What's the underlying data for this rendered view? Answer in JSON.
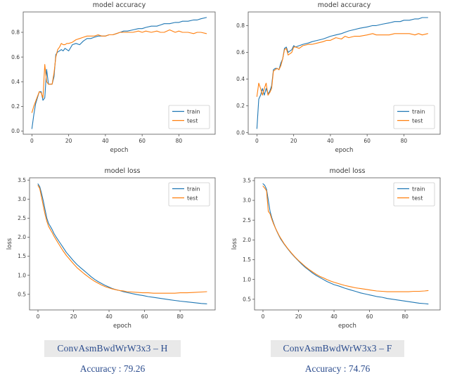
{
  "colors": {
    "train": "#1f77b4",
    "test": "#ff7f0e",
    "axis_text": "#3a3a3a",
    "spine": "#555555",
    "legend_border": "#cccccc",
    "caption_text": "#2a4b8d",
    "caption_bg": "#e9e9e9"
  },
  "captions": [
    {
      "model": "ConvAsmBwdWrW3x3 – H",
      "accuracy_label": "Accuracy : 79.26"
    },
    {
      "model": "ConvAsmBwdWrW3x3 – F",
      "accuracy_label": "Accuracy : 74.76"
    }
  ],
  "chart_data": [
    {
      "type": "line",
      "title": "model accuracy",
      "xlabel": "epoch",
      "ylabel": "",
      "xlim": [
        -4.75,
        99.75
      ],
      "ylim": [
        -0.025,
        0.965
      ],
      "xticks": [
        0,
        20,
        40,
        60,
        80
      ],
      "yticks": [
        0.0,
        0.2,
        0.4,
        0.6,
        0.8
      ],
      "xtick_decimals": 0,
      "ytick_decimals": 1,
      "legend_pos": "lower-right",
      "grid": false,
      "series": [
        {
          "name": "train",
          "color": "train",
          "x": [
            0,
            1,
            2,
            3,
            4,
            5,
            6,
            7,
            8,
            9,
            10,
            11,
            12,
            13,
            14,
            15,
            16,
            17,
            18,
            19,
            20,
            22,
            24,
            26,
            28,
            30,
            32,
            34,
            36,
            38,
            40,
            42,
            44,
            46,
            48,
            50,
            52,
            55,
            58,
            60,
            62,
            65,
            68,
            70,
            72,
            75,
            78,
            80,
            82,
            85,
            88,
            90,
            92,
            95
          ],
          "y": [
            0.02,
            0.13,
            0.22,
            0.27,
            0.32,
            0.32,
            0.25,
            0.27,
            0.5,
            0.38,
            0.38,
            0.38,
            0.44,
            0.62,
            0.64,
            0.65,
            0.66,
            0.65,
            0.67,
            0.66,
            0.65,
            0.7,
            0.71,
            0.7,
            0.73,
            0.75,
            0.75,
            0.76,
            0.77,
            0.77,
            0.77,
            0.78,
            0.78,
            0.79,
            0.8,
            0.81,
            0.81,
            0.82,
            0.83,
            0.83,
            0.84,
            0.85,
            0.85,
            0.86,
            0.87,
            0.87,
            0.88,
            0.88,
            0.89,
            0.89,
            0.9,
            0.9,
            0.91,
            0.92
          ]
        },
        {
          "name": "test",
          "color": "test",
          "x": [
            0,
            1,
            2,
            3,
            4,
            5,
            6,
            7,
            8,
            9,
            10,
            11,
            12,
            13,
            14,
            15,
            16,
            17,
            18,
            19,
            20,
            22,
            24,
            26,
            28,
            30,
            32,
            34,
            36,
            38,
            40,
            42,
            44,
            46,
            48,
            50,
            52,
            55,
            58,
            60,
            62,
            65,
            68,
            70,
            72,
            75,
            78,
            80,
            82,
            85,
            88,
            90,
            92,
            95
          ],
          "y": [
            0.15,
            0.2,
            0.24,
            0.28,
            0.32,
            0.31,
            0.27,
            0.54,
            0.4,
            0.38,
            0.38,
            0.38,
            0.47,
            0.6,
            0.66,
            0.68,
            0.71,
            0.7,
            0.7,
            0.71,
            0.71,
            0.72,
            0.74,
            0.75,
            0.76,
            0.77,
            0.77,
            0.77,
            0.78,
            0.77,
            0.77,
            0.78,
            0.78,
            0.79,
            0.8,
            0.8,
            0.8,
            0.8,
            0.81,
            0.8,
            0.81,
            0.8,
            0.81,
            0.8,
            0.8,
            0.82,
            0.8,
            0.81,
            0.8,
            0.8,
            0.79,
            0.8,
            0.8,
            0.79
          ]
        }
      ]
    },
    {
      "type": "line",
      "title": "model accuracy",
      "xlabel": "epoch",
      "ylabel": "",
      "xlim": [
        -4.75,
        99.75
      ],
      "ylim": [
        -0.012,
        0.902
      ],
      "xticks": [
        0,
        20,
        40,
        60,
        80
      ],
      "yticks": [
        0.0,
        0.2,
        0.4,
        0.6,
        0.8
      ],
      "xtick_decimals": 0,
      "ytick_decimals": 1,
      "legend_pos": "lower-right",
      "grid": false,
      "series": [
        {
          "name": "train",
          "color": "train",
          "x": [
            0,
            1,
            2,
            3,
            4,
            5,
            6,
            7,
            8,
            9,
            10,
            11,
            12,
            13,
            14,
            15,
            16,
            17,
            18,
            19,
            20,
            21,
            23,
            25,
            28,
            30,
            33,
            36,
            38,
            40,
            43,
            46,
            48,
            50,
            53,
            56,
            60,
            63,
            65,
            68,
            72,
            75,
            78,
            80,
            83,
            86,
            88,
            90,
            93
          ],
          "y": [
            0.03,
            0.25,
            0.28,
            0.33,
            0.28,
            0.33,
            0.29,
            0.31,
            0.35,
            0.47,
            0.48,
            0.48,
            0.47,
            0.52,
            0.55,
            0.63,
            0.64,
            0.6,
            0.61,
            0.62,
            0.65,
            0.64,
            0.65,
            0.66,
            0.67,
            0.68,
            0.69,
            0.7,
            0.71,
            0.72,
            0.73,
            0.74,
            0.75,
            0.76,
            0.77,
            0.78,
            0.79,
            0.8,
            0.8,
            0.81,
            0.82,
            0.83,
            0.83,
            0.84,
            0.84,
            0.85,
            0.85,
            0.86,
            0.86
          ]
        },
        {
          "name": "test",
          "color": "test",
          "x": [
            0,
            1,
            2,
            3,
            4,
            5,
            6,
            7,
            8,
            9,
            10,
            11,
            12,
            13,
            14,
            15,
            16,
            17,
            18,
            19,
            20,
            21,
            23,
            25,
            28,
            30,
            33,
            36,
            38,
            40,
            43,
            46,
            48,
            50,
            53,
            56,
            60,
            63,
            65,
            68,
            72,
            75,
            78,
            80,
            83,
            86,
            88,
            90,
            93
          ],
          "y": [
            0.27,
            0.37,
            0.33,
            0.28,
            0.33,
            0.37,
            0.28,
            0.3,
            0.33,
            0.46,
            0.47,
            0.48,
            0.47,
            0.5,
            0.55,
            0.62,
            0.63,
            0.58,
            0.59,
            0.6,
            0.64,
            0.64,
            0.63,
            0.65,
            0.66,
            0.66,
            0.67,
            0.68,
            0.69,
            0.69,
            0.71,
            0.7,
            0.72,
            0.71,
            0.72,
            0.72,
            0.73,
            0.74,
            0.73,
            0.73,
            0.73,
            0.74,
            0.74,
            0.74,
            0.74,
            0.73,
            0.74,
            0.73,
            0.74
          ]
        }
      ]
    },
    {
      "type": "line",
      "title": "model loss",
      "xlabel": "epoch",
      "ylabel": "loss",
      "xlim": [
        -4.75,
        99.75
      ],
      "ylim": [
        0.09,
        3.56
      ],
      "xticks": [
        0,
        20,
        40,
        60,
        80
      ],
      "yticks": [
        0.5,
        1.0,
        1.5,
        2.0,
        2.5,
        3.0,
        3.5
      ],
      "xtick_decimals": 0,
      "ytick_decimals": 1,
      "legend_pos": "upper-right",
      "grid": false,
      "series": [
        {
          "name": "train",
          "color": "train",
          "x": [
            0,
            1,
            2,
            3,
            4,
            5,
            6,
            7,
            8,
            9,
            10,
            12,
            14,
            16,
            18,
            20,
            22,
            24,
            26,
            28,
            30,
            32,
            34,
            36,
            38,
            40,
            42,
            44,
            46,
            48,
            50,
            53,
            56,
            59,
            62,
            65,
            68,
            71,
            74,
            77,
            80,
            84,
            88,
            92,
            95
          ],
          "y": [
            3.4,
            3.33,
            3.15,
            2.95,
            2.72,
            2.5,
            2.36,
            2.28,
            2.2,
            2.1,
            2.02,
            1.88,
            1.74,
            1.6,
            1.49,
            1.38,
            1.28,
            1.2,
            1.12,
            1.04,
            0.96,
            0.89,
            0.83,
            0.78,
            0.73,
            0.69,
            0.65,
            0.62,
            0.6,
            0.57,
            0.55,
            0.52,
            0.49,
            0.47,
            0.44,
            0.42,
            0.4,
            0.38,
            0.36,
            0.34,
            0.32,
            0.3,
            0.28,
            0.26,
            0.25
          ]
        },
        {
          "name": "test",
          "color": "test",
          "x": [
            0,
            1,
            2,
            3,
            4,
            5,
            6,
            7,
            8,
            9,
            10,
            12,
            14,
            16,
            18,
            20,
            22,
            24,
            26,
            28,
            30,
            32,
            34,
            36,
            38,
            40,
            42,
            44,
            46,
            48,
            50,
            53,
            56,
            59,
            62,
            65,
            68,
            71,
            74,
            77,
            80,
            84,
            88,
            92,
            95
          ],
          "y": [
            3.36,
            3.28,
            3.05,
            2.82,
            2.6,
            2.42,
            2.28,
            2.2,
            2.12,
            2.03,
            1.95,
            1.8,
            1.65,
            1.52,
            1.41,
            1.3,
            1.2,
            1.12,
            1.04,
            0.97,
            0.9,
            0.84,
            0.79,
            0.74,
            0.7,
            0.67,
            0.64,
            0.62,
            0.6,
            0.59,
            0.57,
            0.56,
            0.55,
            0.54,
            0.54,
            0.53,
            0.53,
            0.53,
            0.53,
            0.53,
            0.54,
            0.54,
            0.55,
            0.56,
            0.57
          ]
        }
      ]
    },
    {
      "type": "line",
      "title": "model loss",
      "xlabel": "epoch",
      "ylabel": "loss",
      "xlim": [
        -4.75,
        99.75
      ],
      "ylim": [
        0.23,
        3.57
      ],
      "xticks": [
        0,
        20,
        40,
        60,
        80
      ],
      "yticks": [
        0.5,
        1.0,
        1.5,
        2.0,
        2.5,
        3.0,
        3.5
      ],
      "xtick_decimals": 0,
      "ytick_decimals": 1,
      "legend_pos": "upper-right",
      "grid": false,
      "series": [
        {
          "name": "train",
          "color": "train",
          "x": [
            0,
            1,
            2,
            3,
            4,
            5,
            6,
            7,
            8,
            9,
            10,
            12,
            14,
            16,
            18,
            20,
            22,
            24,
            26,
            28,
            30,
            32,
            34,
            36,
            38,
            40,
            43,
            46,
            49,
            52,
            55,
            58,
            61,
            64,
            67,
            70,
            73,
            76,
            79,
            82,
            85,
            88,
            91,
            93
          ],
          "y": [
            3.42,
            3.38,
            3.28,
            3.0,
            2.72,
            2.56,
            2.42,
            2.3,
            2.2,
            2.11,
            2.02,
            1.89,
            1.77,
            1.66,
            1.56,
            1.47,
            1.38,
            1.3,
            1.23,
            1.16,
            1.1,
            1.05,
            1.0,
            0.95,
            0.91,
            0.87,
            0.83,
            0.78,
            0.74,
            0.7,
            0.66,
            0.63,
            0.6,
            0.57,
            0.55,
            0.52,
            0.5,
            0.48,
            0.46,
            0.44,
            0.42,
            0.4,
            0.39,
            0.38
          ]
        },
        {
          "name": "test",
          "color": "test",
          "x": [
            0,
            1,
            2,
            3,
            4,
            5,
            6,
            7,
            8,
            9,
            10,
            12,
            14,
            16,
            18,
            20,
            22,
            24,
            26,
            28,
            30,
            32,
            34,
            36,
            38,
            40,
            43,
            46,
            49,
            52,
            55,
            58,
            61,
            64,
            67,
            70,
            73,
            76,
            79,
            82,
            85,
            88,
            91,
            93
          ],
          "y": [
            3.36,
            3.31,
            3.24,
            2.72,
            2.66,
            2.52,
            2.4,
            2.3,
            2.21,
            2.12,
            2.04,
            1.9,
            1.78,
            1.67,
            1.57,
            1.48,
            1.4,
            1.32,
            1.25,
            1.19,
            1.13,
            1.08,
            1.04,
            1.0,
            0.96,
            0.93,
            0.89,
            0.85,
            0.82,
            0.79,
            0.77,
            0.75,
            0.73,
            0.71,
            0.7,
            0.69,
            0.69,
            0.69,
            0.69,
            0.69,
            0.7,
            0.7,
            0.71,
            0.72
          ]
        }
      ]
    }
  ]
}
